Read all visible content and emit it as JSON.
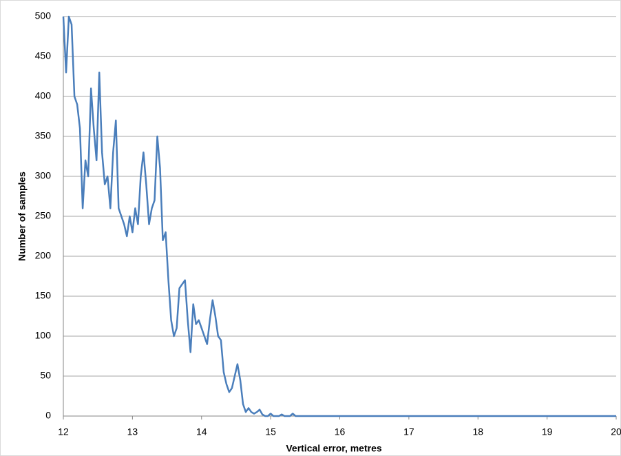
{
  "chart_data": {
    "type": "line",
    "xlabel": "Vertical error, metres",
    "ylabel": "Number of samples",
    "x": [
      12.0,
      12.04,
      12.08,
      12.12,
      12.16,
      12.2,
      12.24,
      12.28,
      12.32,
      12.36,
      12.4,
      12.44,
      12.48,
      12.52,
      12.56,
      12.6,
      12.64,
      12.68,
      12.72,
      12.76,
      12.8,
      12.84,
      12.88,
      12.92,
      12.96,
      13.0,
      13.04,
      13.08,
      13.12,
      13.16,
      13.2,
      13.24,
      13.28,
      13.32,
      13.36,
      13.4,
      13.44,
      13.48,
      13.52,
      13.56,
      13.6,
      13.64,
      13.68,
      13.72,
      13.76,
      13.8,
      13.84,
      13.88,
      13.92,
      13.96,
      14.0,
      14.04,
      14.08,
      14.12,
      14.16,
      14.2,
      14.24,
      14.28,
      14.32,
      14.36,
      14.4,
      14.44,
      14.48,
      14.52,
      14.56,
      14.6,
      14.64,
      14.68,
      14.72,
      14.76,
      14.8,
      14.84,
      14.88,
      14.92,
      14.96,
      15.0,
      15.04,
      15.08,
      15.12,
      15.16,
      15.2,
      15.24,
      15.28,
      15.32,
      15.36,
      16,
      17,
      18,
      19,
      20
    ],
    "series": [
      {
        "name": "Number of samples",
        "color": "#4a7ebb",
        "values": [
          500,
          430,
          500,
          490,
          400,
          390,
          360,
          260,
          320,
          300,
          410,
          360,
          320,
          430,
          330,
          290,
          300,
          260,
          330,
          370,
          260,
          250,
          240,
          225,
          250,
          230,
          260,
          240,
          300,
          330,
          290,
          240,
          260,
          270,
          350,
          310,
          220,
          230,
          170,
          120,
          100,
          110,
          160,
          165,
          170,
          120,
          80,
          140,
          115,
          120,
          110,
          100,
          90,
          120,
          145,
          125,
          100,
          95,
          55,
          40,
          30,
          35,
          50,
          65,
          45,
          15,
          5,
          10,
          5,
          3,
          5,
          8,
          2,
          0,
          0,
          3,
          0,
          0,
          0,
          2,
          0,
          0,
          0,
          3,
          0,
          0,
          0,
          0,
          0,
          0
        ]
      }
    ],
    "xlim": [
      12,
      20
    ],
    "ylim": [
      0,
      500
    ],
    "xticks": [
      12,
      13,
      14,
      15,
      16,
      17,
      18,
      19,
      20
    ],
    "yticks": [
      0,
      50,
      100,
      150,
      200,
      250,
      300,
      350,
      400,
      450,
      500
    ],
    "grid": true
  }
}
